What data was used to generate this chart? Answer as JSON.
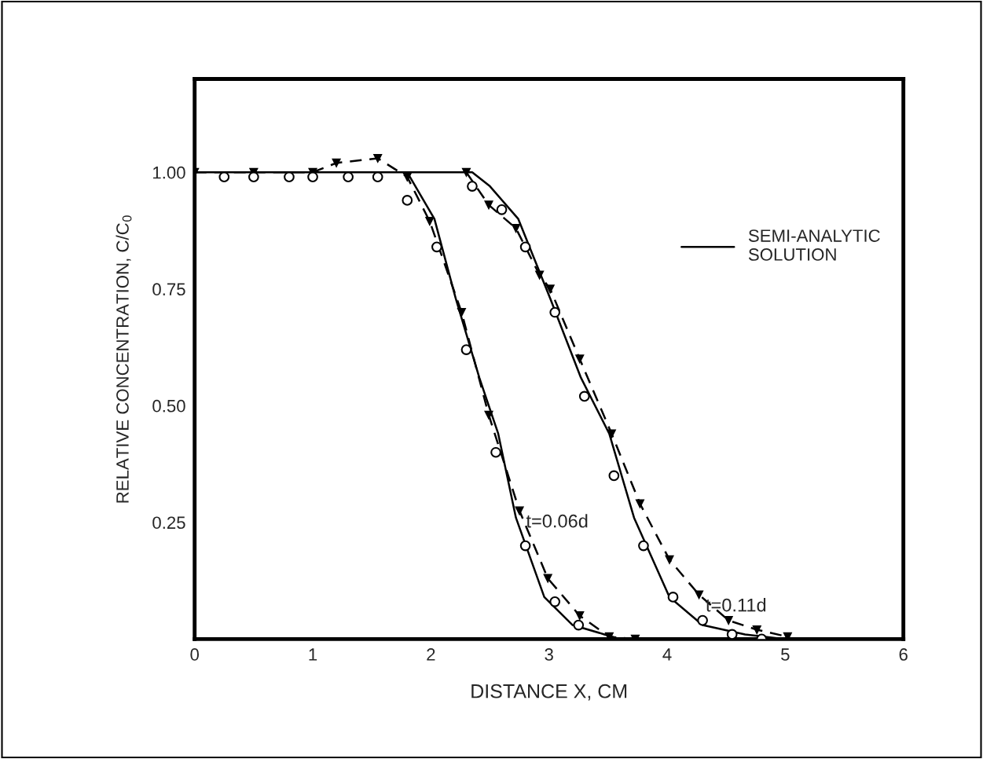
{
  "chart_data": {
    "type": "line",
    "xlabel": "DISTANCE X, CM",
    "ylabel": "RELATIVE CONCENTRATION, C/C$_{0}$",
    "xlim": [
      0,
      6
    ],
    "ylim": [
      0,
      1.2
    ],
    "xticks": [
      0,
      1,
      2,
      3,
      4,
      5,
      6
    ],
    "yticks": [
      {
        "value": 0.25,
        "label": "0.25"
      },
      {
        "value": 0.5,
        "label": "0.50"
      },
      {
        "value": 0.75,
        "label": "0.75"
      },
      {
        "value": 1.0,
        "label": "1.00"
      }
    ],
    "grid": false,
    "legend": "top right",
    "series": [
      {
        "type": "scatter",
        "color": "#000000",
        "marker": "circle",
        "x": [
          0.25,
          0.5,
          0.8,
          1.0,
          1.3,
          1.55,
          1.8,
          2.05,
          2.3,
          2.55,
          2.8,
          3.05,
          3.25,
          2.35,
          2.6,
          2.8,
          3.05,
          3.3,
          3.55,
          3.8,
          4.05,
          4.3,
          4.55,
          4.8
        ],
        "values": [
          0.99,
          0.99,
          0.99,
          0.99,
          0.99,
          0.99,
          0.94,
          0.84,
          0.62,
          0.4,
          0.2,
          0.08,
          0.03,
          0.97,
          0.92,
          0.84,
          0.7,
          0.52,
          0.35,
          0.2,
          0.09,
          0.04,
          0.01,
          0.0
        ]
      },
      {
        "color": "#000000",
        "marker": "triangle",
        "line_style": "dashed",
        "x": [
          0,
          0.5,
          1.0,
          1.2,
          1.55,
          1.8,
          1.99,
          2.26,
          2.49,
          2.75,
          2.99,
          3.26,
          3.51,
          3.73
        ],
        "values": [
          1.0,
          1.0,
          1.0,
          1.02,
          1.03,
          0.99,
          0.895,
          0.7,
          0.48,
          0.275,
          0.13,
          0.05,
          0.005,
          0.0
        ]
      },
      {
        "color": "#000000",
        "marker": "triangle",
        "line_style": "dashed",
        "x": [
          2.3,
          2.49,
          2.72,
          2.92,
          3.01,
          3.26,
          3.53,
          3.77,
          4.02,
          4.27,
          4.52,
          4.76,
          5.02
        ],
        "values": [
          1.0,
          0.93,
          0.88,
          0.78,
          0.75,
          0.6,
          0.44,
          0.29,
          0.17,
          0.095,
          0.04,
          0.02,
          0.005
        ]
      },
      {
        "name": "SEMI-ANALYTIC\nSOLUTION",
        "color": "#000000",
        "marker": "none",
        "line_style": "solid",
        "x": [
          0,
          1.8,
          2.03,
          2.21,
          2.41,
          2.57,
          2.72,
          2.96,
          3.2,
          3.47,
          3.6
        ],
        "values": [
          1.0,
          1.0,
          0.9,
          0.73,
          0.56,
          0.44,
          0.26,
          0.09,
          0.03,
          0.01,
          0.0
        ]
      },
      {
        "color": "#000000",
        "marker": "none",
        "line_style": "solid",
        "x": [
          1.8,
          2.35,
          2.5,
          2.74,
          3.01,
          3.27,
          3.51,
          3.72,
          4.02,
          4.3,
          4.66,
          5.0
        ],
        "values": [
          1.0,
          1.0,
          0.97,
          0.9,
          0.73,
          0.56,
          0.44,
          0.26,
          0.09,
          0.03,
          0.01,
          0.0
        ]
      }
    ],
    "annotations": [
      {
        "text": "t=0.06d",
        "x": 2.75,
        "y": 0.275
      },
      {
        "text": "t=0.11d",
        "x": 4.27,
        "y": 0.095
      }
    ]
  }
}
